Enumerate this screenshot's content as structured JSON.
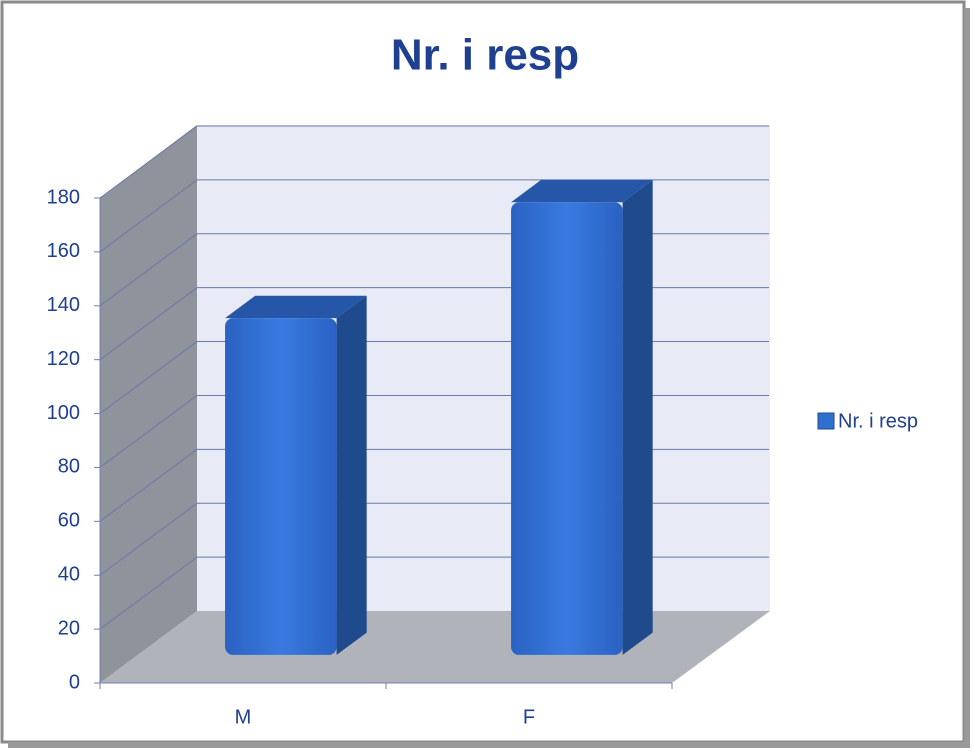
{
  "chart_data": {
    "type": "bar3d",
    "title": "Nr. i resp",
    "categories": [
      "M",
      "F"
    ],
    "series": [
      {
        "name": "Nr. i resp",
        "color": "#2f6fd0",
        "values": [
          125,
          168
        ]
      }
    ],
    "ylim": [
      0,
      180
    ],
    "yticks": [
      0,
      20,
      40,
      60,
      80,
      100,
      120,
      140,
      160,
      180
    ],
    "grid": true,
    "legend": "right"
  }
}
